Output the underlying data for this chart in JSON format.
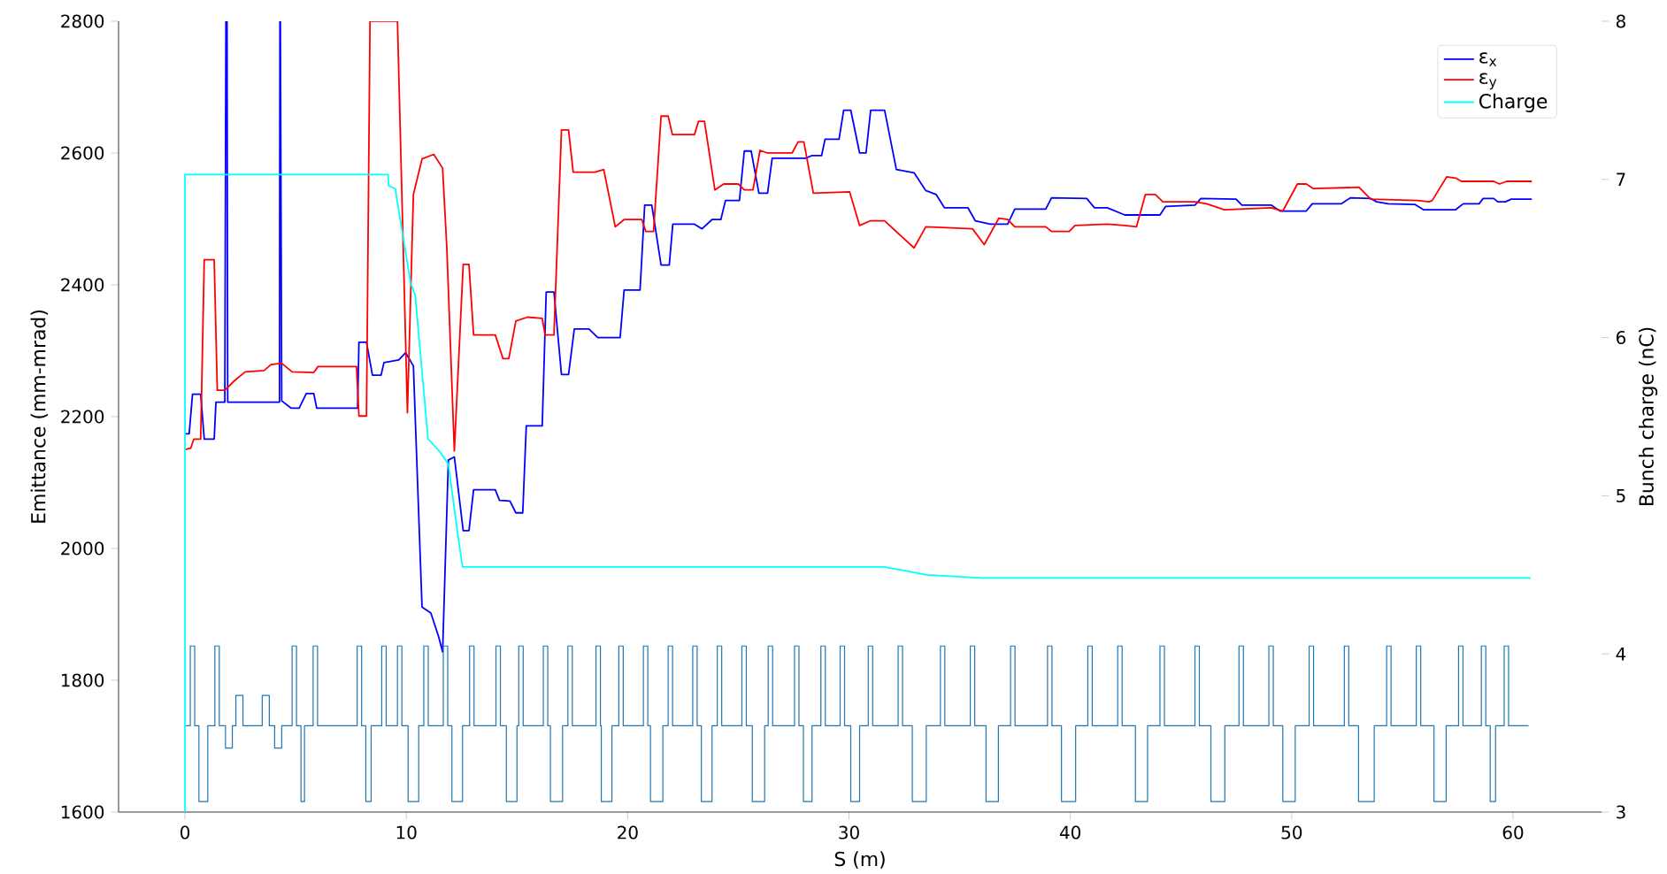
{
  "chart_data": {
    "type": "line",
    "xlabel": "S (m)",
    "ylabel": "Emittance (mm-mrad)",
    "y2label": "Bunch charge (nC)",
    "xlim": [
      -3,
      64
    ],
    "xticks": [
      0,
      10,
      20,
      30,
      40,
      50,
      60
    ],
    "ylim": [
      1600,
      2800
    ],
    "yticks": [
      1600,
      1800,
      2000,
      2200,
      2400,
      2600,
      2800
    ],
    "y2lim": [
      3,
      8
    ],
    "y2ticks": [
      3,
      4,
      5,
      6,
      7,
      8
    ],
    "legend": "top right",
    "series": [
      {
        "name": "ε$_{x}$",
        "color": "#0000ff",
        "x": [
          0,
          0.19,
          0.34,
          0.71,
          0.87,
          1.32,
          1.4,
          1.8,
          1.85,
          1.9,
          1.93,
          4.27,
          4.29,
          4.31,
          4.37,
          4.79,
          5.16,
          5.48,
          5.82,
          5.95,
          7.8,
          7.86,
          8.2,
          8.47,
          8.86,
          8.99,
          9.66,
          9.97,
          10.32,
          10.71,
          11.11,
          11.46,
          11.64,
          11.9,
          12.17,
          12.57,
          12.83,
          13.04,
          14.02,
          14.21,
          14.68,
          14.95,
          15.26,
          15.42,
          16.14,
          16.32,
          16.67,
          17.01,
          17.33,
          17.59,
          18.25,
          18.65,
          19.66,
          19.84,
          20.56,
          20.77,
          21.09,
          21.51,
          21.88,
          22.04,
          23.02,
          23.36,
          23.81,
          24.21,
          24.42,
          25.05,
          25.27,
          25.58,
          25.93,
          26.32,
          26.53,
          28.04,
          28.31,
          28.76,
          28.92,
          29.55,
          29.76,
          30.08,
          30.48,
          30.77,
          30.98,
          31.61,
          32.14,
          32.94,
          33.47,
          33.94,
          34.31,
          35.37,
          35.71,
          36.38,
          37.17,
          37.49,
          38.89,
          39.15,
          40.74,
          41.09,
          41.67,
          42.46,
          44.05,
          44.31,
          45.63,
          45.9,
          47.49,
          47.75,
          49.07,
          49.47,
          50.66,
          50.93,
          52.25,
          52.65,
          53.57,
          53.84,
          54.37,
          55.56,
          55.95,
          57.41,
          57.75,
          58.47,
          58.65,
          59.13,
          59.31,
          59.66,
          59.92,
          60.85
        ],
        "values": [
          2174,
          2174,
          2234,
          2234,
          2166,
          2166,
          2222,
          2222,
          2800,
          2800,
          2222,
          2222,
          2800,
          2800,
          2224,
          2213,
          2213,
          2235,
          2235,
          2213,
          2213,
          2313,
          2313,
          2263,
          2263,
          2282,
          2286,
          2297,
          2277,
          1911,
          1902,
          1866,
          1843,
          2134,
          2139,
          2027,
          2027,
          2089,
          2089,
          2073,
          2072,
          2054,
          2054,
          2186,
          2186,
          2389,
          2389,
          2264,
          2264,
          2333,
          2333,
          2320,
          2320,
          2392,
          2392,
          2521,
          2521,
          2430,
          2430,
          2492,
          2492,
          2485,
          2499,
          2499,
          2528,
          2528,
          2603,
          2603,
          2539,
          2539,
          2592,
          2592,
          2596,
          2596,
          2621,
          2621,
          2665,
          2665,
          2600,
          2600,
          2665,
          2665,
          2575,
          2570,
          2543,
          2537,
          2517,
          2517,
          2497,
          2492,
          2492,
          2515,
          2515,
          2532,
          2531,
          2517,
          2517,
          2506,
          2506,
          2519,
          2521,
          2531,
          2530,
          2521,
          2521,
          2512,
          2512,
          2523,
          2523,
          2532,
          2531,
          2526,
          2523,
          2522,
          2514,
          2514,
          2523,
          2523,
          2531,
          2531,
          2526,
          2526,
          2530,
          2530
        ]
      },
      {
        "name": "ε$_{y}$",
        "color": "#ff0000",
        "x": [
          0,
          0.26,
          0.4,
          0.71,
          0.87,
          1.32,
          1.46,
          1.8,
          2.25,
          2.72,
          3.57,
          3.89,
          4.37,
          4.84,
          5.82,
          6.01,
          7.75,
          7.86,
          8.2,
          8.36,
          9.6,
          10.05,
          10.32,
          10.71,
          11.24,
          11.64,
          11.83,
          12.17,
          12.57,
          12.83,
          13.04,
          14.02,
          14.37,
          14.63,
          14.95,
          15.48,
          16.14,
          16.27,
          16.67,
          17.01,
          17.33,
          17.54,
          18.52,
          18.92,
          19.44,
          19.84,
          20.64,
          20.82,
          21.17,
          21.51,
          21.83,
          22.02,
          23.02,
          23.2,
          23.47,
          23.94,
          24.34,
          25.0,
          25.27,
          25.66,
          25.98,
          26.32,
          27.43,
          27.7,
          27.96,
          28.39,
          30.03,
          30.48,
          30.95,
          31.61,
          32.94,
          33.47,
          35.58,
          36.11,
          36.77,
          37.17,
          37.49,
          38.89,
          39.15,
          39.95,
          40.21,
          41.67,
          42.46,
          42.99,
          43.39,
          43.84,
          44.18,
          45.63,
          46.16,
          46.96,
          49.07,
          49.6,
          50.26,
          50.66,
          50.98,
          53.04,
          53.57,
          55.69,
          56.21,
          56.35,
          57.01,
          57.41,
          57.67,
          59.13,
          59.39,
          59.71,
          60.85
        ],
        "values": [
          2150,
          2152,
          2166,
          2166,
          2438,
          2438,
          2240,
          2240,
          2255,
          2268,
          2270,
          2279,
          2281,
          2268,
          2267,
          2276,
          2276,
          2201,
          2201,
          2800,
          2800,
          2206,
          2537,
          2591,
          2598,
          2577,
          2456,
          2148,
          2431,
          2431,
          2324,
          2324,
          2288,
          2288,
          2345,
          2351,
          2349,
          2324,
          2324,
          2635,
          2635,
          2571,
          2571,
          2575,
          2488,
          2499,
          2499,
          2481,
          2481,
          2656,
          2656,
          2628,
          2628,
          2648,
          2648,
          2544,
          2553,
          2553,
          2544,
          2544,
          2604,
          2600,
          2600,
          2617,
          2617,
          2539,
          2541,
          2490,
          2497,
          2497,
          2456,
          2488,
          2485,
          2461,
          2501,
          2499,
          2488,
          2488,
          2481,
          2481,
          2490,
          2492,
          2490,
          2488,
          2537,
          2537,
          2526,
          2526,
          2523,
          2514,
          2517,
          2512,
          2553,
          2553,
          2546,
          2548,
          2530,
          2528,
          2526,
          2528,
          2564,
          2562,
          2557,
          2557,
          2553,
          2557,
          2557
        ]
      },
      {
        "name": "Charge",
        "color": "#00ffff",
        "axis": "y2",
        "x": [
          0,
          0,
          9.18,
          9.2,
          9.5,
          10.2,
          10.4,
          10.98,
          11.5,
          11.9,
          12.3,
          12.54,
          31.6,
          33.5,
          36.0,
          60.8
        ],
        "values": [
          3,
          7.03,
          7.03,
          6.96,
          6.94,
          6.34,
          6.27,
          5.36,
          5.28,
          5.2,
          4.78,
          4.55,
          4.55,
          4.5,
          4.48,
          4.48
        ]
      },
      {
        "type": "step",
        "color": "#1f77b4",
        "x": [
          0,
          0.24,
          0.44,
          0.63,
          1.03,
          1.35,
          1.55,
          1.83,
          2.14,
          2.3,
          2.62,
          3.49,
          3.81,
          4.05,
          4.37,
          4.84,
          5.04,
          5.24,
          5.4,
          5.79,
          5.99,
          7.78,
          7.98,
          8.17,
          8.41,
          8.89,
          9.09,
          9.6,
          9.8,
          10.08,
          10.56,
          10.79,
          10.99,
          11.67,
          11.87,
          12.06,
          12.54,
          12.86,
          13.06,
          14.05,
          14.25,
          14.52,
          15.0,
          15.08,
          15.28,
          16.19,
          16.39,
          16.51,
          17.06,
          17.3,
          17.5,
          18.57,
          18.77,
          18.81,
          19.29,
          19.6,
          19.8,
          20.71,
          20.91,
          21.03,
          21.59,
          21.83,
          22.03,
          22.94,
          23.14,
          23.33,
          23.81,
          24.05,
          24.25,
          25.16,
          25.36,
          25.63,
          26.19,
          26.35,
          26.55,
          27.54,
          27.74,
          27.94,
          28.33,
          28.73,
          28.93,
          29.6,
          29.8,
          30.08,
          30.48,
          30.87,
          31.07,
          32.22,
          32.42,
          32.86,
          33.49,
          34.13,
          34.33,
          35.48,
          35.68,
          36.19,
          36.75,
          37.3,
          37.5,
          38.97,
          39.17,
          39.6,
          40.24,
          40.79,
          40.99,
          42.14,
          42.34,
          42.94,
          43.49,
          44.05,
          44.25,
          45.63,
          45.83,
          46.35,
          46.98,
          47.62,
          47.82,
          48.97,
          49.17,
          49.6,
          50.16,
          50.79,
          50.99,
          52.38,
          52.58,
          53.02,
          53.73,
          54.29,
          54.49,
          55.63,
          55.83,
          56.43,
          56.98,
          57.54,
          57.74,
          58.57,
          58.77,
          58.97,
          59.21,
          59.6,
          59.8,
          60.7
        ],
        "values": [
          1731,
          1852,
          1731,
          1616,
          1731,
          1852,
          1731,
          1697,
          1731,
          1777,
          1731,
          1777,
          1731,
          1697,
          1731,
          1852,
          1731,
          1616,
          1731,
          1852,
          1731,
          1852,
          1731,
          1616,
          1731,
          1852,
          1731,
          1852,
          1731,
          1616,
          1731,
          1852,
          1731,
          1852,
          1731,
          1616,
          1731,
          1852,
          1731,
          1852,
          1731,
          1616,
          1731,
          1852,
          1731,
          1852,
          1731,
          1616,
          1731,
          1852,
          1731,
          1852,
          1731,
          1616,
          1731,
          1852,
          1731,
          1852,
          1731,
          1616,
          1731,
          1852,
          1731,
          1852,
          1731,
          1616,
          1731,
          1852,
          1731,
          1852,
          1731,
          1616,
          1731,
          1852,
          1731,
          1852,
          1731,
          1616,
          1731,
          1852,
          1731,
          1852,
          1731,
          1616,
          1731,
          1852,
          1731,
          1852,
          1731,
          1616,
          1731,
          1852,
          1731,
          1852,
          1731,
          1616,
          1731,
          1852,
          1731,
          1852,
          1731,
          1616,
          1731,
          1852,
          1731,
          1852,
          1731,
          1616,
          1731,
          1852,
          1731,
          1852,
          1731,
          1616,
          1731,
          1852,
          1731,
          1852,
          1731,
          1616,
          1731,
          1852,
          1731,
          1852,
          1731,
          1616,
          1731,
          1852,
          1731,
          1852,
          1731,
          1616,
          1731,
          1852,
          1731,
          1852,
          1731,
          1616,
          1731,
          1852,
          1731,
          1731
        ]
      }
    ]
  }
}
